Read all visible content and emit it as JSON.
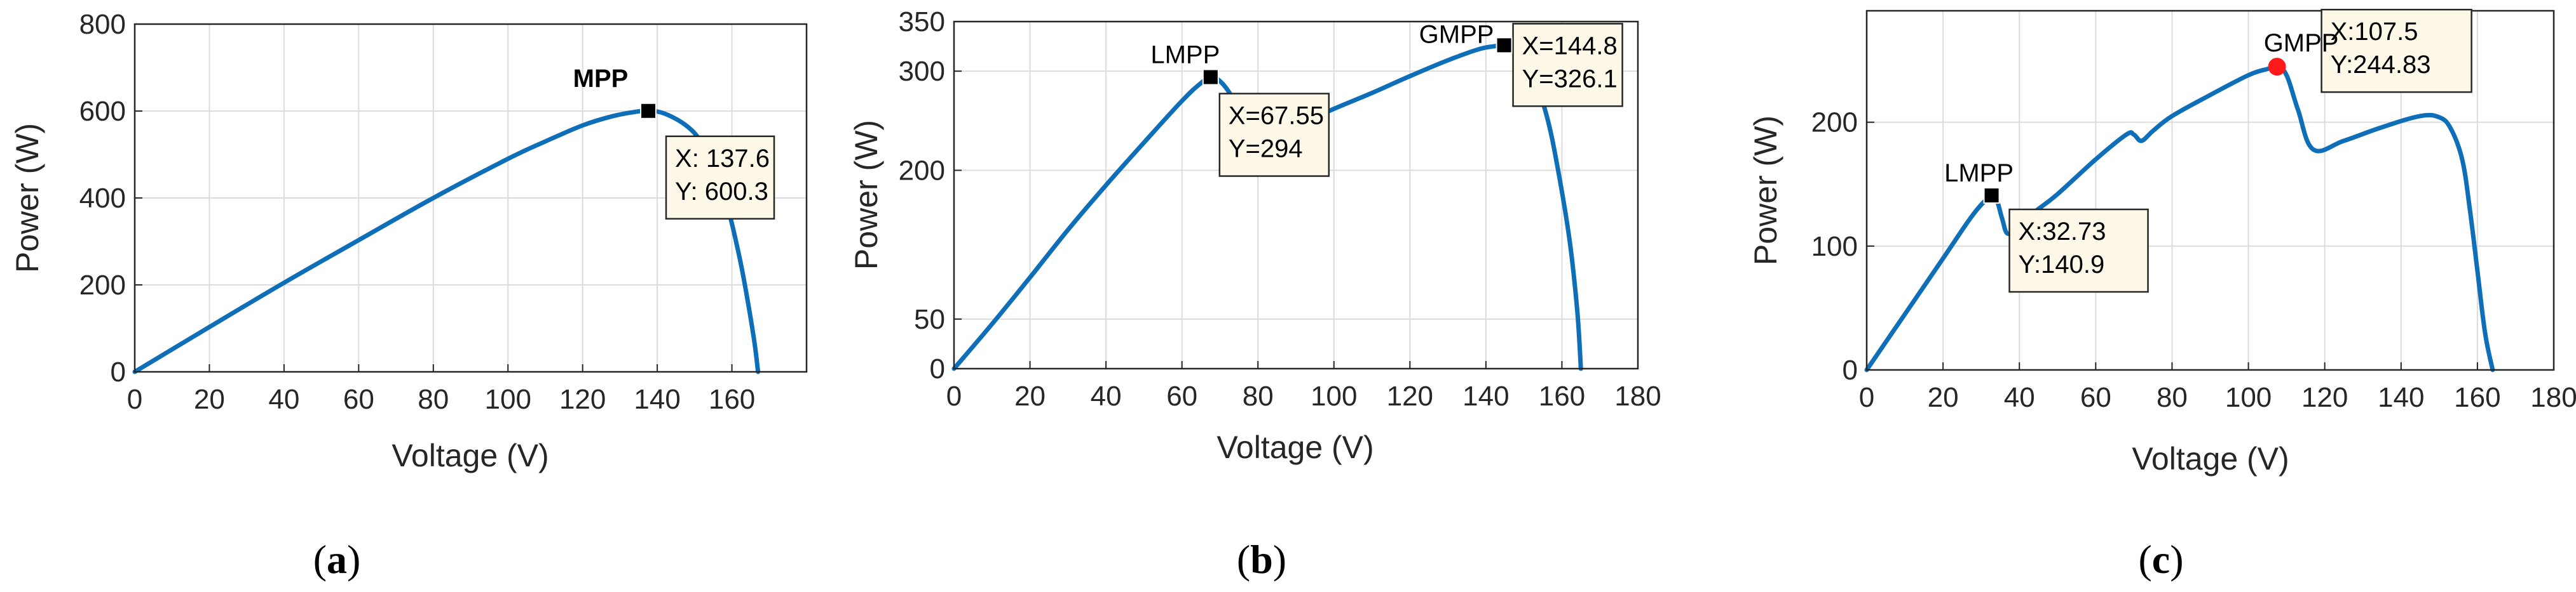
{
  "chart_data": [
    {
      "id": "a",
      "type": "line",
      "panel_label": "a",
      "xlabel": "Voltage (V)",
      "ylabel": "Power (W)",
      "xlim": [
        0,
        180
      ],
      "ylim": [
        0,
        800
      ],
      "xticks": [
        0,
        20,
        40,
        60,
        80,
        100,
        120,
        140,
        160
      ],
      "xtick_labels": [
        "0",
        "20",
        "40",
        "60",
        "80",
        "100",
        "120",
        "140",
        "160"
      ],
      "yticks": [
        0,
        200,
        400,
        600,
        800
      ],
      "ytick_labels": [
        "0",
        "200",
        "400",
        "600",
        "800"
      ],
      "grid": true,
      "series": [
        {
          "name": "P-V curve",
          "color": "#0e6fb8",
          "x": [
            0,
            20,
            40,
            60,
            80,
            100,
            110,
            120,
            128,
            134,
            137.6,
            142,
            148,
            152,
            156,
            159,
            162,
            164,
            166,
            167
          ],
          "y": [
            0,
            103,
            205,
            303,
            400,
            490,
            530,
            567,
            588,
            598,
            600.3,
            594,
            565,
            525,
            455,
            375,
            265,
            175,
            70,
            0
          ]
        }
      ],
      "markers": [
        {
          "label": "MPP",
          "label_color": "#ff1a1a",
          "x": 137.6,
          "y": 600.3,
          "marker": "square",
          "color": "#000000",
          "tip_lines": [
            "X: 137.6",
            "Y: 600.3"
          ]
        }
      ]
    },
    {
      "id": "b",
      "type": "line",
      "panel_label": "b",
      "xlabel": "Voltage (V)",
      "ylabel": "Power (W)",
      "xlim": [
        0,
        180
      ],
      "ylim": [
        0,
        350
      ],
      "xticks": [
        0,
        20,
        40,
        60,
        80,
        100,
        120,
        140,
        160,
        180
      ],
      "xtick_labels": [
        "0",
        "20",
        "40",
        "60",
        "80",
        "100",
        "120",
        "140",
        "160",
        "180"
      ],
      "yticks": [
        0,
        50,
        200,
        300,
        350
      ],
      "ytick_labels": [
        "0",
        "50",
        "200",
        "300",
        "350"
      ],
      "grid": true,
      "series": [
        {
          "name": "P-V curve",
          "color": "#0e6fb8",
          "x": [
            0,
            10,
            20,
            30,
            40,
            50,
            60,
            65,
            67.55,
            70,
            73,
            76,
            80,
            90,
            100,
            110,
            120,
            130,
            138,
            142,
            144.8,
            148,
            152,
            156,
            159,
            162,
            164,
            165
          ],
          "y": [
            0,
            45,
            92,
            140,
            185,
            228,
            270,
            288,
            294,
            290,
            275,
            250,
            230,
            245,
            262,
            278,
            295,
            311,
            322,
            325,
            326.1,
            322,
            300,
            255,
            200,
            130,
            60,
            0
          ]
        }
      ],
      "markers": [
        {
          "label": "LMPP",
          "label_color": "#000000",
          "x": 67.55,
          "y": 294,
          "marker": "square",
          "color": "#000000",
          "tip_lines": [
            "X=67.55",
            "Y=294"
          ]
        },
        {
          "label": "GMPP",
          "label_color": "#ff1a1a",
          "x": 144.8,
          "y": 326.1,
          "marker": "square",
          "color": "#000000",
          "tip_lines": [
            "X=144.8",
            "Y=326.1"
          ]
        }
      ]
    },
    {
      "id": "c",
      "type": "line",
      "panel_label": "c",
      "xlabel": "Voltage (V)",
      "ylabel": "Power (W)",
      "xlim": [
        0,
        180
      ],
      "ylim": [
        0,
        290
      ],
      "xticks": [
        0,
        20,
        40,
        60,
        80,
        100,
        120,
        140,
        160,
        180
      ],
      "xtick_labels": [
        "0",
        "20",
        "40",
        "60",
        "80",
        "100",
        "120",
        "140",
        "160",
        "180"
      ],
      "yticks": [
        0,
        100,
        200
      ],
      "ytick_labels": [
        "0",
        "100",
        "200"
      ],
      "grid": true,
      "series": [
        {
          "name": "P-V curve",
          "color": "#0e6fb8",
          "x": [
            0,
            10,
            20,
            28,
            32.73,
            34,
            35.5,
            37,
            40,
            45,
            50,
            60,
            68,
            70,
            72,
            75,
            80,
            90,
            100,
            105,
            107.5,
            110,
            113,
            117,
            125,
            135,
            145,
            150,
            153,
            156,
            158,
            160,
            162,
            164
          ],
          "y": [
            0,
            45,
            90,
            126,
            140.9,
            138,
            122,
            110,
            118,
            130,
            142,
            170,
            190,
            190,
            185,
            193,
            205,
            222,
            238,
            243,
            244.83,
            238,
            210,
            178,
            185,
            196,
            205,
            204,
            195,
            170,
            130,
            80,
            30,
            0
          ]
        }
      ],
      "markers": [
        {
          "label": "LMPP",
          "label_color": "#000000",
          "x": 32.73,
          "y": 140.9,
          "marker": "square",
          "color": "#000000",
          "tip_lines": [
            "X:32.73",
            "Y:140.9"
          ]
        },
        {
          "label": "GMPP",
          "label_color": "#ff1a1a",
          "x": 107.5,
          "y": 244.83,
          "marker": "circle",
          "color": "#ff1a1a",
          "tip_lines": [
            "X:107.5",
            "Y:244.83"
          ]
        }
      ]
    }
  ]
}
